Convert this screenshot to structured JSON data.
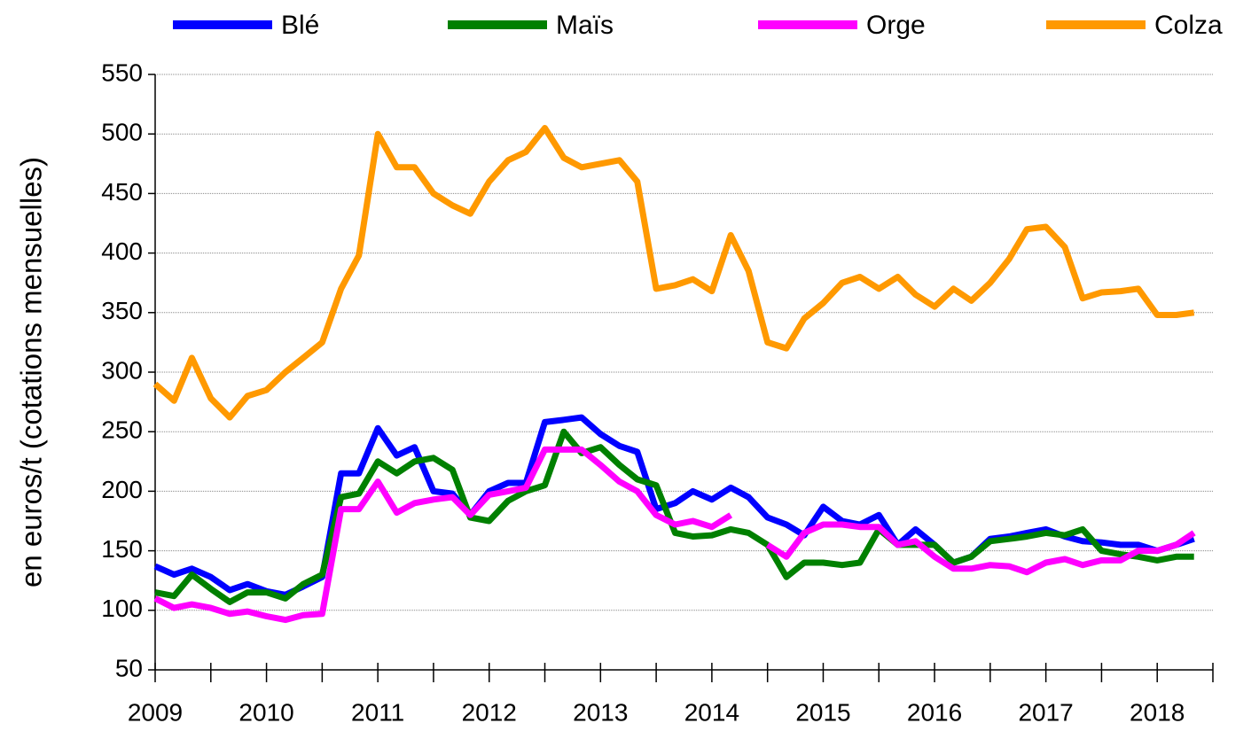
{
  "chart_data": {
    "type": "line",
    "y_label": "en euros/t (cotations mensuelles)",
    "x": [
      2009,
      2009.17,
      2009.33,
      2009.5,
      2009.67,
      2009.83,
      2010,
      2010.17,
      2010.33,
      2010.5,
      2010.67,
      2010.83,
      2011,
      2011.17,
      2011.33,
      2011.5,
      2011.67,
      2011.83,
      2012,
      2012.17,
      2012.33,
      2012.5,
      2012.67,
      2012.83,
      2013,
      2013.17,
      2013.33,
      2013.5,
      2013.67,
      2013.83,
      2014,
      2014.17,
      2014.33,
      2014.5,
      2014.67,
      2014.83,
      2015,
      2015.17,
      2015.33,
      2015.5,
      2015.67,
      2015.83,
      2016,
      2016.17,
      2016.33,
      2016.5,
      2016.67,
      2016.83,
      2017,
      2017.17,
      2017.33,
      2017.5,
      2017.67,
      2017.83,
      2018,
      2018.17,
      2018.33
    ],
    "series": [
      {
        "name": "Blé",
        "color": "#0000ff",
        "values": [
          137,
          130,
          135,
          128,
          117,
          122,
          116,
          113,
          120,
          128,
          215,
          215,
          253,
          230,
          237,
          200,
          198,
          180,
          200,
          207,
          207,
          258,
          260,
          262,
          248,
          238,
          233,
          185,
          190,
          200,
          193,
          203,
          195,
          178,
          172,
          163,
          187,
          175,
          172,
          180,
          155,
          168,
          155,
          140,
          145,
          160,
          162,
          165,
          168,
          162,
          158,
          157,
          155,
          155,
          150,
          155,
          160
        ]
      },
      {
        "name": "Maïs",
        "color": "#008000",
        "values": [
          115,
          112,
          130,
          118,
          107,
          115,
          115,
          110,
          122,
          130,
          195,
          198,
          225,
          215,
          225,
          228,
          218,
          178,
          175,
          192,
          200,
          205,
          250,
          232,
          237,
          222,
          210,
          205,
          165,
          162,
          163,
          168,
          165,
          155,
          128,
          140,
          140,
          138,
          140,
          168,
          155,
          155,
          155,
          140,
          145,
          158,
          160,
          162,
          165,
          163,
          168,
          150,
          147,
          145,
          142,
          145,
          145
        ]
      },
      {
        "name": "Orge",
        "color": "#ff00ff",
        "values": [
          110,
          102,
          105,
          102,
          97,
          99,
          95,
          92,
          96,
          97,
          185,
          185,
          208,
          182,
          190,
          193,
          195,
          180,
          197,
          200,
          203,
          235,
          235,
          235,
          222,
          208,
          200,
          180,
          172,
          175,
          170,
          180,
          null,
          155,
          145,
          165,
          172,
          172,
          170,
          170,
          155,
          158,
          145,
          135,
          135,
          138,
          137,
          132,
          140,
          143,
          138,
          142,
          142,
          150,
          150,
          155,
          165
        ]
      },
      {
        "name": "Colza",
        "color": "#ff9900",
        "values": [
          290,
          276,
          312,
          278,
          262,
          280,
          285,
          300,
          312,
          325,
          370,
          398,
          500,
          472,
          472,
          450,
          440,
          433,
          460,
          478,
          485,
          505,
          480,
          472,
          475,
          478,
          460,
          370,
          373,
          378,
          368,
          415,
          385,
          325,
          320,
          345,
          358,
          375,
          380,
          370,
          380,
          365,
          355,
          370,
          360,
          375,
          395,
          420,
          422,
          405,
          362,
          367,
          368,
          370,
          348,
          348,
          350
        ]
      }
    ],
    "xlim": [
      2009,
      2018.5
    ],
    "xticks": [
      2009,
      2010,
      2011,
      2012,
      2013,
      2014,
      2015,
      2016,
      2017,
      2018
    ],
    "x_minor_ticks": [
      2009.5,
      2010.5,
      2011.5,
      2012.5,
      2013.5,
      2014.5,
      2015.5,
      2016.5,
      2017.5,
      2018.5
    ],
    "ylim": [
      50,
      550
    ],
    "yticks": [
      50,
      100,
      150,
      200,
      250,
      300,
      350,
      400,
      450,
      500,
      550
    ],
    "grid": true
  }
}
